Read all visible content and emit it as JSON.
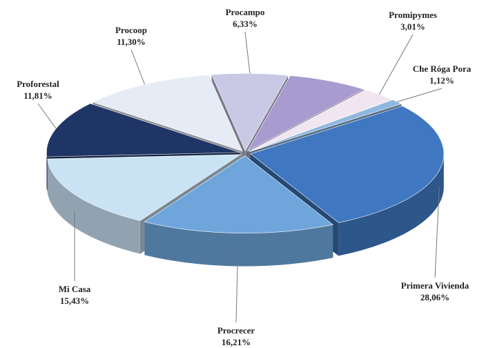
{
  "chart_data": {
    "type": "pie",
    "categories": [
      "Procampo",
      null,
      "Promipymes",
      "Che Róga Pora",
      "Primera Vivienda",
      "Procrecer",
      "Mi Casa",
      "Proforestal",
      "Procoop"
    ],
    "values": [
      6.33,
      6.73,
      3.01,
      1.12,
      28.06,
      16.21,
      15.43,
      11.81,
      11.3
    ],
    "value_labels": [
      "6,33%",
      null,
      "3,01%",
      "1,12%",
      "28,06%",
      "16,21%",
      "15,43%",
      "11,81%",
      "11,30%"
    ],
    "colors": [
      "#c9c9e6",
      "#a79bd0",
      "#f1e6ef",
      "#8fb8e0",
      "#3f78c0",
      "#6ea6dc",
      "#c9e2f4",
      "#1f3565",
      "#e6ecf6"
    ]
  }
}
